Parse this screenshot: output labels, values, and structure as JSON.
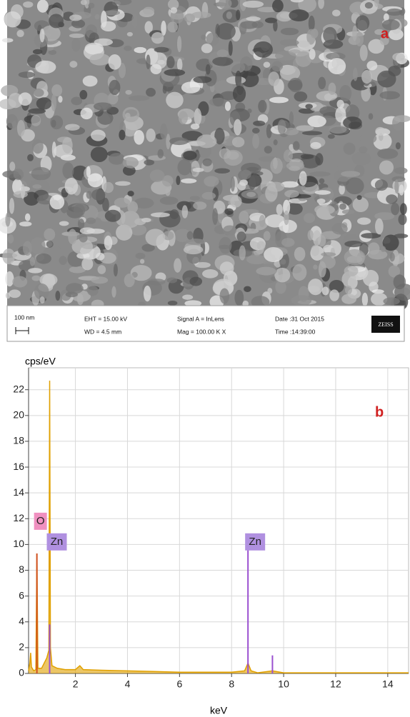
{
  "image": {
    "label": "a",
    "scale_bar": "100 nm",
    "eht": "EHT = 15.00 kV",
    "wd": "WD = 4.5 mm",
    "signal": "Signal A = InLens",
    "mag": "Mag = 100.00 K X",
    "date": "Date :31 Oct 2015",
    "time": "Time :14:39:00",
    "brand": "ZEISS"
  },
  "chart_data": {
    "type": "spectrum",
    "label": "b",
    "ylabel": "cps/eV",
    "xlabel": "keV",
    "xlim": [
      0.2,
      14.8
    ],
    "ylim": [
      0,
      23.7
    ],
    "xticks": [
      2,
      4,
      6,
      8,
      10,
      12,
      14
    ],
    "yticks": [
      0,
      2,
      4,
      6,
      8,
      10,
      12,
      14,
      16,
      18,
      20,
      22
    ],
    "grid": true,
    "series": [
      {
        "color": "#e0a000",
        "x": [
          0.2,
          0.25,
          0.28,
          0.31,
          0.4,
          0.48,
          0.52,
          0.56,
          0.7,
          0.9,
          0.98,
          1.01,
          1.04,
          1.1,
          1.3,
          1.6,
          2.0,
          2.17,
          2.3,
          3.0,
          4.0,
          5.0,
          6.0,
          7.0,
          8.0,
          8.5,
          8.63,
          8.75,
          9.0,
          9.57,
          10.0,
          12.0,
          14.0,
          14.8
        ],
        "values": [
          0.2,
          0.8,
          1.6,
          0.5,
          0.2,
          0.3,
          9.3,
          0.4,
          0.4,
          1.2,
          1.8,
          22.7,
          2,
          0.6,
          0.4,
          0.3,
          0.3,
          0.6,
          0.3,
          0.25,
          0.2,
          0.15,
          0.1,
          0.1,
          0.1,
          0.2,
          0.8,
          0.2,
          0.05,
          0.2,
          0.05,
          0.05,
          0.05,
          0.05
        ]
      },
      {
        "color": "#d05020",
        "x": [
          0.52
        ],
        "values": [
          9.3
        ]
      },
      {
        "color": "#9a50d0",
        "x": [
          1.01,
          8.63,
          9.57
        ],
        "values": [
          3.8,
          10.8,
          1.4
        ]
      }
    ],
    "annotations": [
      {
        "text": "O",
        "x": 0.52,
        "y": 11.8,
        "color": "#f090c0"
      },
      {
        "text": "Zn",
        "x": 1.01,
        "y": 10.2,
        "color": "#b090e0"
      },
      {
        "text": "Zn",
        "x": 8.63,
        "y": 10.2,
        "color": "#b090e0"
      }
    ]
  }
}
